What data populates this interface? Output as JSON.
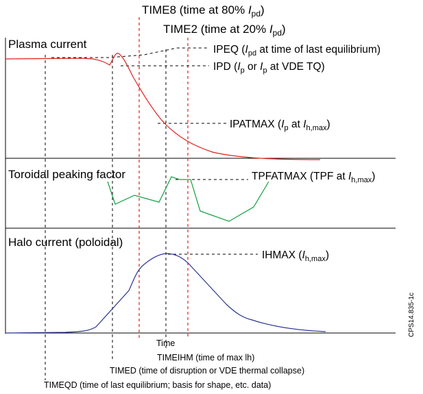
{
  "panels": {
    "plasma": "Plasma current",
    "tpf": "Toroidal peaking factor",
    "halo": "Halo current (poloidal)"
  },
  "top_labels": {
    "time8": {
      "main": "TIME8 (time at 80% ",
      "var": "I",
      "sub": "pd",
      "close": ")"
    },
    "time2": {
      "main": "TIME2 (time at 20% ",
      "var": "I",
      "sub": "pd",
      "close": ")"
    }
  },
  "annotations": {
    "ipeq": {
      "a": "IPEQ (",
      "v1": "I",
      "s1": "pd",
      "b": " at time of last equilibrium)"
    },
    "ipd": {
      "a": "IPD (",
      "v1": "I",
      "s1": "p",
      "b": " or ",
      "v2": "I",
      "s2": "p",
      "c": " at VDE TQ)"
    },
    "ipatmax": {
      "a": "IPATMAX (",
      "v1": "I",
      "s1": "p",
      "b": " at ",
      "v2": "I",
      "s2": "h,max",
      "c": ")"
    },
    "tpfatmax": {
      "a": "TPFATMAX (TPF at ",
      "v1": "I",
      "s1": "h,max",
      "b": ")"
    },
    "ihmax": {
      "a": "IHMAX (",
      "v1": "I",
      "s1": "h,max",
      "b": ")"
    }
  },
  "time_axis": {
    "time": "Time",
    "timeihm": "TIMEIHM (time of max lh)",
    "timed": "TIMED (time of disruption or VDE thermal collapse)",
    "timeqd": "TIMEQD (time of last equilibrium; basis for shape, etc. data)"
  },
  "figure_id": "CPS14.835-1c",
  "colors": {
    "plasma": "#e0201c",
    "tpf": "#10a040",
    "halo": "#2a3590",
    "red_guides": "#e0201c",
    "black_guides": "#000000"
  }
}
